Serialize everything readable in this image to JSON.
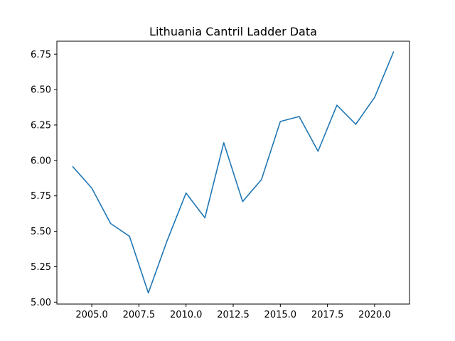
{
  "chart_data": {
    "type": "line",
    "title": "Lithuania Cantril Ladder Data",
    "xlabel": "",
    "ylabel": "",
    "xlim": [
      2003.15,
      2021.85
    ],
    "ylim": [
      4.9865,
      6.8415
    ],
    "grid": false,
    "line_color": "#1f77b4",
    "x_ticks": [
      2005.0,
      2007.5,
      2010.0,
      2012.5,
      2015.0,
      2017.5,
      2020.0
    ],
    "x_tick_labels": [
      "2005.0",
      "2007.5",
      "2010.0",
      "2012.5",
      "2015.0",
      "2017.5",
      "2020.0"
    ],
    "y_ticks": [
      5.0,
      5.25,
      5.5,
      5.75,
      6.0,
      6.25,
      6.5,
      6.75
    ],
    "y_tick_labels": [
      "5.00",
      "5.25",
      "5.50",
      "5.75",
      "6.00",
      "6.25",
      "6.50",
      "6.75"
    ],
    "series": [
      {
        "x": [
          2004,
          2005,
          2006,
          2007,
          2008,
          2009,
          2010,
          2011,
          2012,
          2013,
          2014,
          2015,
          2016,
          2017,
          2018,
          2019,
          2020,
          2021
        ],
        "y": [
          5.955,
          5.805,
          5.555,
          5.465,
          5.065,
          5.435,
          5.77,
          5.595,
          6.125,
          5.71,
          5.865,
          6.275,
          6.31,
          6.065,
          6.39,
          6.255,
          6.445,
          6.765
        ]
      }
    ]
  }
}
